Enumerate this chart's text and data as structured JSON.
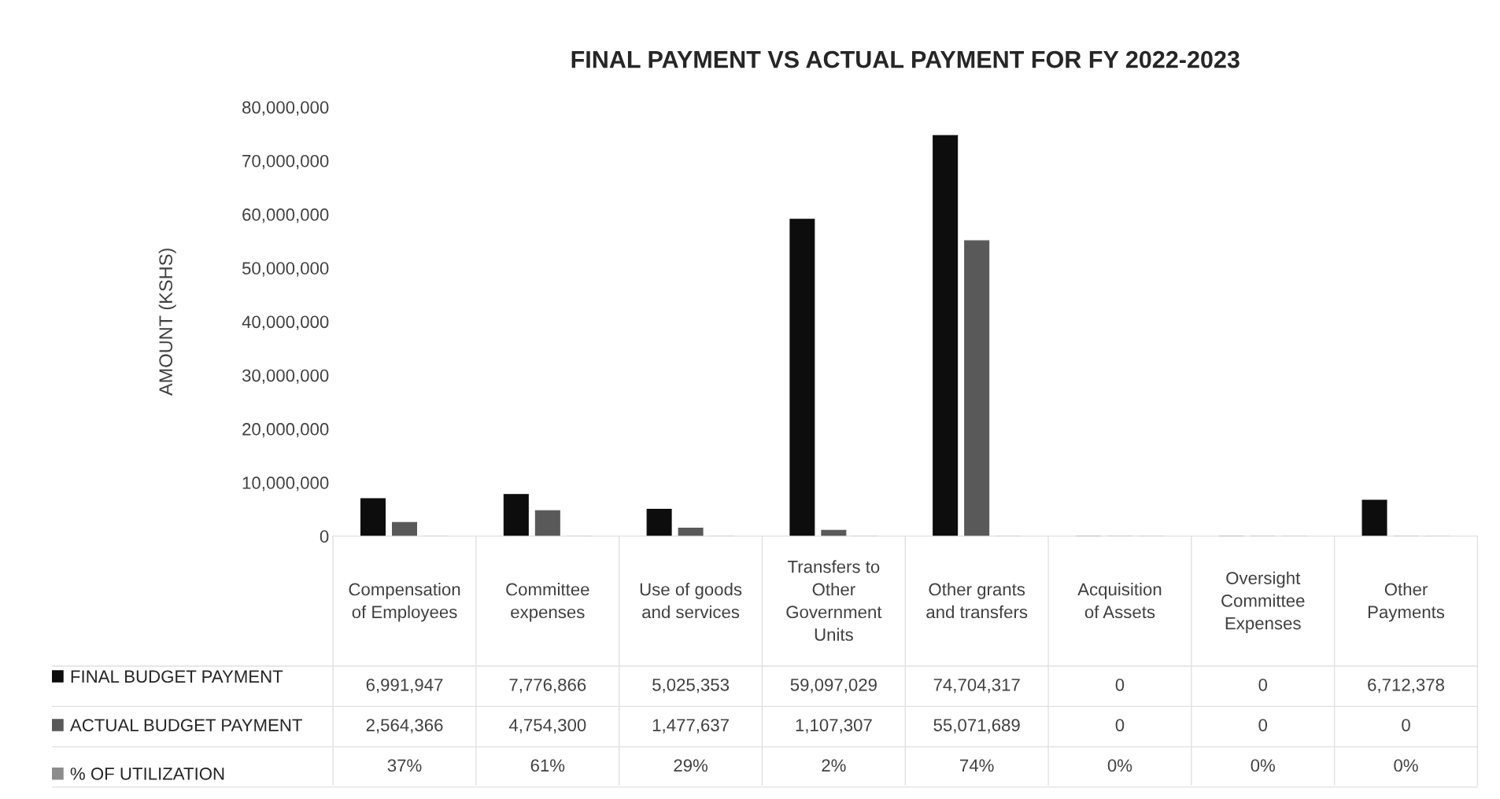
{
  "chart_data": {
    "type": "bar",
    "title": "FINAL PAYMENT VS ACTUAL PAYMENT FOR FY 2022-2023",
    "ylabel": "AMOUNT (KSHS)",
    "categories": [
      "Compensation of Employees",
      "Committee expenses",
      "Use of goods and services",
      "Transfers to Other Government Units",
      "Other grants and transfers",
      "Acquisition of Assets",
      "Oversight Committee Expenses",
      "Other Payments"
    ],
    "series": [
      {
        "name": "FINAL BUDGET PAYMENT",
        "color": "#0d0d0d",
        "values": [
          6991947,
          7776866,
          5025353,
          59097029,
          74704317,
          0,
          0,
          6712378
        ],
        "value_labels": [
          "6,991,947",
          "7,776,866",
          "5,025,353",
          "59,097,029",
          "74,704,317",
          "0",
          "0",
          "6,712,378"
        ]
      },
      {
        "name": "ACTUAL BUDGET PAYMENT",
        "color": "#595959",
        "values": [
          2564366,
          4754300,
          1477637,
          1107307,
          55071689,
          0,
          0,
          0
        ],
        "value_labels": [
          "2,564,366",
          "4,754,300",
          "1,477,637",
          "1,107,307",
          "55,071,689",
          "0",
          "0",
          "0"
        ]
      },
      {
        "name": "% OF UTILIZATION",
        "color": "#8c8c8c",
        "values": [
          0.37,
          0.61,
          0.29,
          0.02,
          0.74,
          0,
          0,
          0
        ],
        "value_labels": [
          "37%",
          "61%",
          "29%",
          "2%",
          "74%",
          "0%",
          "0%",
          "0%"
        ]
      }
    ],
    "ylim": [
      0,
      80000000
    ],
    "yticks": [
      {
        "value": 0,
        "label": "0"
      },
      {
        "value": 10000000,
        "label": "10,000,000"
      },
      {
        "value": 20000000,
        "label": "20,000,000"
      },
      {
        "value": 30000000,
        "label": "30,000,000"
      },
      {
        "value": 40000000,
        "label": "40,000,000"
      },
      {
        "value": 50000000,
        "label": "50,000,000"
      },
      {
        "value": 60000000,
        "label": "60,000,000"
      },
      {
        "value": 70000000,
        "label": "70,000,000"
      },
      {
        "value": 80000000,
        "label": "80,000,000"
      }
    ],
    "legend": "bottom left",
    "grid": false
  }
}
